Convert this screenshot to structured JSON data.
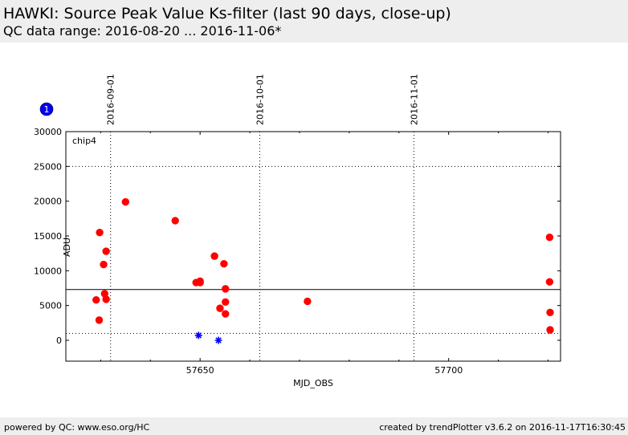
{
  "header": {
    "title": "HAWKI: Source Peak Value Ks-filter (last 90 days, close-up)",
    "subtitle": "QC data range: 2016-08-20 ... 2016-11-06*"
  },
  "footer": {
    "left": "powered by QC: www.eso.org/HC",
    "right": "created by trendPlotter v3.6.2 on 2016-11-17T16:30:45"
  },
  "badge": "1",
  "chart_data": {
    "type": "scatter",
    "panel_label": "chip4",
    "xlabel": "MJD_OBS",
    "ylabel": "ADU",
    "xlim": [
      57623.0,
      57722.5
    ],
    "ylim": [
      -3000,
      30000
    ],
    "x_ticks": [
      57650,
      57700
    ],
    "y_ticks": [
      0,
      5000,
      10000,
      15000,
      20000,
      25000,
      30000
    ],
    "date_ticks": [
      {
        "x": 57632,
        "label": "2016-09-01"
      },
      {
        "x": 57662,
        "label": "2016-10-01"
      },
      {
        "x": 57693,
        "label": "2016-11-01"
      }
    ],
    "grid": {
      "dotted_y": [
        1000,
        25000
      ]
    },
    "reference_line": 7300,
    "series": [
      {
        "marker": "circle",
        "color": "#ff0000",
        "points": [
          [
            57629.8,
            15500
          ],
          [
            57630.6,
            10900
          ],
          [
            57631.1,
            12800
          ],
          [
            57630.8,
            6700
          ],
          [
            57629.1,
            5800
          ],
          [
            57631.1,
            5900
          ],
          [
            57629.7,
            2900
          ],
          [
            57635.0,
            19900
          ],
          [
            57645.0,
            17200
          ],
          [
            57649.2,
            8300
          ],
          [
            57650.0,
            8500
          ],
          [
            57650.0,
            8300
          ],
          [
            57652.9,
            12100
          ],
          [
            57654.8,
            11000
          ],
          [
            57655.1,
            7400
          ],
          [
            57654.0,
            4600
          ],
          [
            57655.1,
            5500
          ],
          [
            57655.1,
            3800
          ],
          [
            57671.6,
            5600
          ],
          [
            57720.3,
            14800
          ],
          [
            57720.3,
            8400
          ],
          [
            57720.4,
            4000
          ],
          [
            57720.4,
            1500
          ]
        ]
      },
      {
        "marker": "star",
        "color": "#0000ff",
        "points": [
          [
            57649.7,
            700
          ],
          [
            57653.7,
            0
          ]
        ]
      }
    ]
  }
}
